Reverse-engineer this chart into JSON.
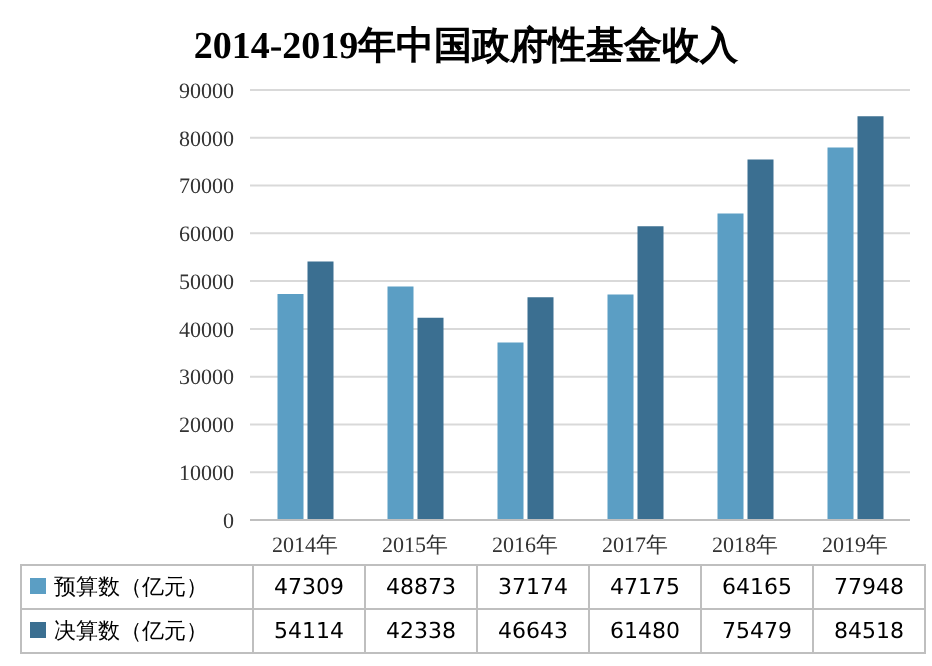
{
  "chart_data": {
    "type": "bar",
    "title": "2014-2019年中国政府性基金收入",
    "categories": [
      "2014年",
      "2015年",
      "2016年",
      "2017年",
      "2018年",
      "2019年"
    ],
    "series": [
      {
        "name": "预算数（亿元）",
        "color": "#5b9ec4",
        "values": [
          47309,
          48873,
          37174,
          47175,
          64165,
          77948
        ]
      },
      {
        "name": "决算数（亿元）",
        "color": "#3b6f91",
        "values": [
          54114,
          42338,
          46643,
          61480,
          75479,
          84518
        ]
      }
    ],
    "ylim": [
      0,
      90000
    ],
    "yticks": [
      0,
      10000,
      20000,
      30000,
      40000,
      50000,
      60000,
      70000,
      80000,
      90000
    ],
    "grid": "y",
    "legend": "bottom",
    "data_labels": true
  }
}
